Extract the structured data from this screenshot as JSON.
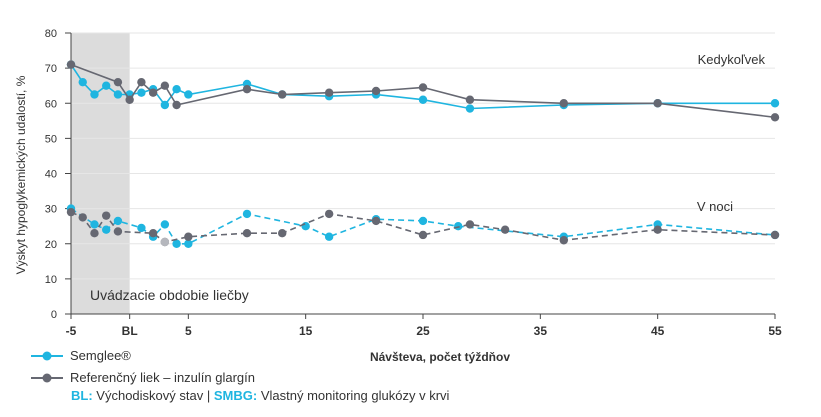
{
  "chart_data": {
    "type": "line",
    "ylabel": "Výskyt hypoglykemických udalostí, %",
    "xlabel": "Návšteva, počet týždňov",
    "ylim": [
      0,
      80
    ],
    "xlim": [
      -5,
      55
    ],
    "yticks": [
      0,
      10,
      20,
      30,
      40,
      50,
      60,
      70,
      80
    ],
    "xticks": [
      {
        "value": -5,
        "label": "-5"
      },
      {
        "value": 0,
        "label": "BL"
      },
      {
        "value": 5,
        "label": "5"
      },
      {
        "value": 15,
        "label": "15"
      },
      {
        "value": 25,
        "label": "25"
      },
      {
        "value": 35,
        "label": "35"
      },
      {
        "value": 45,
        "label": "45"
      },
      {
        "value": 55,
        "label": "55"
      }
    ],
    "shaded_region": {
      "x0": -5,
      "x1": 0,
      "label": "Uvádzacie obdobie liečby"
    },
    "group_labels": {
      "anytime": "Kedykoľvek",
      "night": "V noci"
    },
    "series": [
      {
        "name": "Semglee®",
        "color": "#1fb5e0",
        "group": "anytime",
        "dash": false,
        "points": [
          [
            -5,
            71
          ],
          [
            -4,
            66
          ],
          [
            -3,
            62.5
          ],
          [
            -2,
            65
          ],
          [
            -1,
            62.5
          ],
          [
            0,
            62.5
          ],
          [
            1,
            63
          ],
          [
            2,
            64
          ],
          [
            3,
            59.5
          ],
          [
            4,
            64
          ],
          [
            5,
            62.5
          ],
          [
            10,
            65.5
          ],
          [
            13,
            62.5
          ],
          [
            17,
            62
          ],
          [
            21,
            62.5
          ],
          [
            25,
            61
          ],
          [
            29,
            58.5
          ],
          [
            37,
            59.5
          ],
          [
            45,
            60
          ],
          [
            55,
            60
          ]
        ]
      },
      {
        "name": "Referenčný liek – inzulín glargín",
        "color": "#666872",
        "group": "anytime",
        "dash": false,
        "points": [
          [
            -5,
            71
          ],
          [
            -1,
            66
          ],
          [
            0,
            61
          ],
          [
            1,
            66
          ],
          [
            2,
            63
          ],
          [
            3,
            65
          ],
          [
            4,
            59.5
          ],
          [
            10,
            64
          ],
          [
            13,
            62.5
          ],
          [
            17,
            63
          ],
          [
            21,
            63.5
          ],
          [
            25,
            64.5
          ],
          [
            29,
            61
          ],
          [
            37,
            60
          ],
          [
            45,
            60
          ],
          [
            55,
            56
          ]
        ]
      },
      {
        "name": "Semglee®",
        "color": "#1fb5e0",
        "group": "night",
        "dash": true,
        "points": [
          [
            -5,
            30
          ],
          [
            -3,
            25.5
          ],
          [
            -2,
            24
          ],
          [
            -1,
            26.5
          ],
          [
            1,
            24.5
          ],
          [
            2,
            22
          ],
          [
            3,
            25.5
          ],
          [
            4,
            20
          ],
          [
            5,
            20
          ],
          [
            10,
            28.5
          ],
          [
            15,
            25
          ],
          [
            17,
            22
          ],
          [
            21,
            27
          ],
          [
            25,
            26.5
          ],
          [
            28,
            25
          ],
          [
            37,
            22
          ],
          [
            45,
            25.5
          ],
          [
            55,
            22.5
          ]
        ]
      },
      {
        "name": "Referenčný liek – inzulín glargín",
        "color": "#666872",
        "group": "night",
        "dash": true,
        "points": [
          [
            -5,
            29
          ],
          [
            -4,
            27.5
          ],
          [
            -3,
            23
          ],
          [
            -2,
            28
          ],
          [
            -1,
            23.5
          ],
          [
            2,
            23
          ],
          [
            3,
            20.5
          ],
          [
            5,
            22
          ],
          [
            10,
            23
          ],
          [
            13,
            23
          ],
          [
            17,
            28.5
          ],
          [
            21,
            26.5
          ],
          [
            25,
            22.5
          ],
          [
            29,
            25.5
          ],
          [
            32,
            24
          ],
          [
            37,
            21
          ],
          [
            45,
            24
          ],
          [
            55,
            22.5
          ]
        ]
      }
    ],
    "extra_points": [
      {
        "x": 3,
        "y": 20.5,
        "color": "#b5b7bd"
      }
    ]
  },
  "legend": [
    {
      "label": "Semglee®",
      "color": "#1fb5e0"
    },
    {
      "label": "Referenčný liek – inzulín glargín",
      "color": "#666872"
    }
  ],
  "footnote": {
    "bl_key": "BL:",
    "bl_text": "Východiskový stav",
    "sep": "|",
    "smbg_key": "SMBG:",
    "smbg_text": "Vlastný monitoring glukózy v krvi"
  }
}
